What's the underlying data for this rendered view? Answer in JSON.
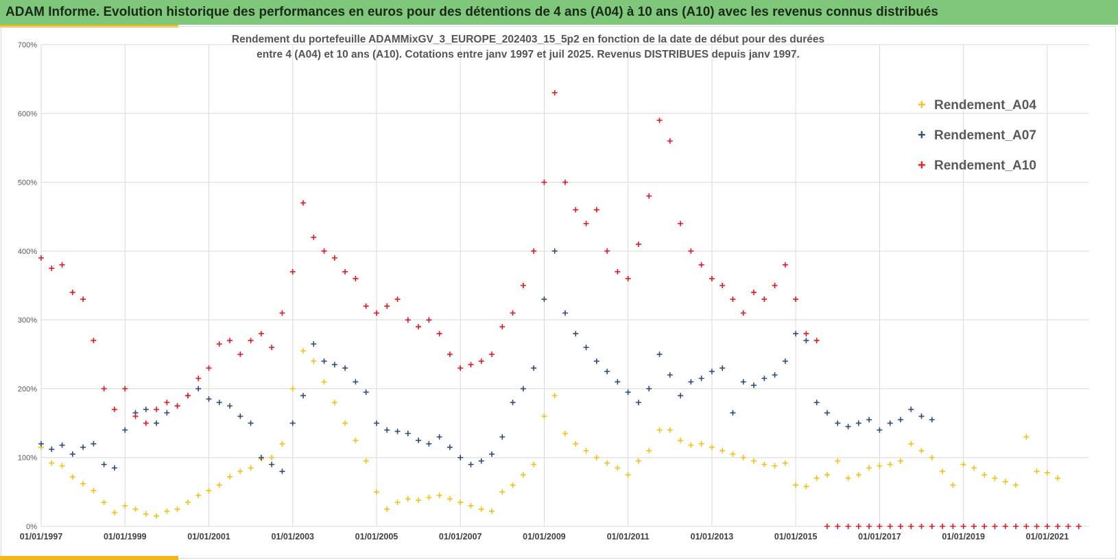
{
  "banner": {
    "title": "ADAM Informe. Evolution historique des performances en euros pour des détentions de 4 ans (A04) à 10 ans (A10) avec les revenus connus distribués"
  },
  "colors": {
    "banner_bg": "#7fc77a",
    "accent": "#f3b81c",
    "A04": "#f5c013",
    "A07": "#2e4a7a",
    "A10": "#e8141e",
    "grid": "#d9d9d9"
  },
  "chart_data": {
    "type": "scatter",
    "title_line1": "Rendement du portefeuille ADAMMixGV_3_EUROPE_202403_15_5p2  en fonction de la date de début pour des durées",
    "title_line2": "entre 4 (A04) et 10 ans (A10). Cotations  entre janv 1997 et juil 2025. Revenus DISTRIBUES depuis janv 1997.",
    "xlabel": "",
    "ylabel": "",
    "marker": "+",
    "x_ticks": [
      "01/01/1997",
      "01/01/1999",
      "01/01/2001",
      "01/01/2003",
      "01/01/2005",
      "01/01/2007",
      "01/01/2009",
      "01/01/2011",
      "01/01/2013",
      "01/01/2015",
      "01/01/2017",
      "01/01/2019",
      "01/01/2021"
    ],
    "y_ticks": [
      "0%",
      "100%",
      "200%",
      "300%",
      "400%",
      "500%",
      "600%",
      "700%"
    ],
    "xlim": [
      1997.0,
      2022.0
    ],
    "ylim": [
      0,
      700
    ],
    "grid": true,
    "legend_position": "top-right",
    "series": [
      {
        "name": "Rendement_A04",
        "x": [
          1997.0,
          1997.25,
          1997.5,
          1997.75,
          1998.0,
          1998.25,
          1998.5,
          1998.75,
          1999.0,
          1999.25,
          1999.5,
          1999.75,
          2000.0,
          2000.25,
          2000.5,
          2000.75,
          2001.0,
          2001.25,
          2001.5,
          2001.75,
          2002.0,
          2002.25,
          2002.5,
          2002.75,
          2003.0,
          2003.25,
          2003.5,
          2003.75,
          2004.0,
          2004.25,
          2004.5,
          2004.75,
          2005.0,
          2005.25,
          2005.5,
          2005.75,
          2006.0,
          2006.25,
          2006.5,
          2006.75,
          2007.0,
          2007.25,
          2007.5,
          2007.75,
          2008.0,
          2008.25,
          2008.5,
          2008.75,
          2009.0,
          2009.25,
          2009.5,
          2009.75,
          2010.0,
          2010.25,
          2010.5,
          2010.75,
          2011.0,
          2011.25,
          2011.5,
          2011.75,
          2012.0,
          2012.25,
          2012.5,
          2012.75,
          2013.0,
          2013.25,
          2013.5,
          2013.75,
          2014.0,
          2014.25,
          2014.5,
          2014.75,
          2015.0,
          2015.25,
          2015.5,
          2015.75,
          2016.0,
          2016.25,
          2016.5,
          2016.75,
          2017.0,
          2017.25,
          2017.5,
          2017.75,
          2018.0,
          2018.25,
          2018.5,
          2018.75,
          2019.0,
          2019.25,
          2019.5,
          2019.75,
          2020.0,
          2020.25,
          2020.5,
          2020.75,
          2021.0,
          2021.25
        ],
        "values": [
          115,
          92,
          88,
          72,
          62,
          52,
          35,
          20,
          30,
          25,
          18,
          15,
          22,
          25,
          35,
          45,
          52,
          60,
          72,
          80,
          85,
          98,
          100,
          120,
          200,
          255,
          240,
          210,
          180,
          150,
          125,
          95,
          50,
          25,
          35,
          40,
          38,
          42,
          45,
          40,
          35,
          30,
          25,
          22,
          50,
          60,
          75,
          90,
          160,
          190,
          135,
          120,
          110,
          100,
          92,
          85,
          75,
          95,
          110,
          140,
          140,
          125,
          118,
          120,
          115,
          110,
          105,
          100,
          95,
          90,
          88,
          92,
          60,
          58,
          70,
          75,
          95,
          70,
          75,
          85,
          88,
          90,
          95,
          120,
          110,
          100,
          80,
          60,
          90,
          85,
          75,
          70,
          65,
          60,
          130,
          80,
          78,
          70
        ]
      },
      {
        "name": "Rendement_A07",
        "x": [
          1997.0,
          1997.25,
          1997.5,
          1997.75,
          1998.0,
          1998.25,
          1998.5,
          1998.75,
          1999.0,
          1999.25,
          1999.5,
          1999.75,
          2000.0,
          2000.25,
          2000.5,
          2000.75,
          2001.0,
          2001.25,
          2001.5,
          2001.75,
          2002.0,
          2002.25,
          2002.5,
          2002.75,
          2003.0,
          2003.25,
          2003.5,
          2003.75,
          2004.0,
          2004.25,
          2004.5,
          2004.75,
          2005.0,
          2005.25,
          2005.5,
          2005.75,
          2006.0,
          2006.25,
          2006.5,
          2006.75,
          2007.0,
          2007.25,
          2007.5,
          2007.75,
          2008.0,
          2008.25,
          2008.5,
          2008.75,
          2009.0,
          2009.25,
          2009.5,
          2009.75,
          2010.0,
          2010.25,
          2010.5,
          2010.75,
          2011.0,
          2011.25,
          2011.5,
          2011.75,
          2012.0,
          2012.25,
          2012.5,
          2012.75,
          2013.0,
          2013.25,
          2013.5,
          2013.75,
          2014.0,
          2014.25,
          2014.5,
          2014.75,
          2015.0,
          2015.25,
          2015.5,
          2015.75,
          2016.0,
          2016.25,
          2016.5,
          2016.75,
          2017.0,
          2017.25,
          2017.5,
          2017.75,
          2018.0,
          2018.25
        ],
        "values": [
          120,
          112,
          118,
          105,
          115,
          120,
          90,
          85,
          140,
          165,
          170,
          150,
          165,
          175,
          190,
          200,
          185,
          180,
          175,
          160,
          150,
          100,
          90,
          80,
          150,
          190,
          265,
          240,
          235,
          230,
          210,
          195,
          150,
          140,
          138,
          135,
          125,
          120,
          130,
          115,
          100,
          90,
          95,
          105,
          130,
          180,
          200,
          230,
          330,
          400,
          310,
          280,
          260,
          240,
          225,
          210,
          195,
          180,
          200,
          250,
          220,
          190,
          210,
          215,
          225,
          230,
          165,
          210,
          205,
          215,
          220,
          240,
          280,
          270,
          180,
          165,
          150,
          145,
          150,
          155,
          140,
          150,
          155,
          170,
          160,
          155
        ]
      },
      {
        "name": "Rendement_A10",
        "x": [
          1997.0,
          1997.25,
          1997.5,
          1997.75,
          1998.0,
          1998.25,
          1998.5,
          1998.75,
          1999.0,
          1999.25,
          1999.5,
          1999.75,
          2000.0,
          2000.25,
          2000.5,
          2000.75,
          2001.0,
          2001.25,
          2001.5,
          2001.75,
          2002.0,
          2002.25,
          2002.5,
          2002.75,
          2003.0,
          2003.25,
          2003.5,
          2003.75,
          2004.0,
          2004.25,
          2004.5,
          2004.75,
          2005.0,
          2005.25,
          2005.5,
          2005.75,
          2006.0,
          2006.25,
          2006.5,
          2006.75,
          2007.0,
          2007.25,
          2007.5,
          2007.75,
          2008.0,
          2008.25,
          2008.5,
          2008.75,
          2009.0,
          2009.25,
          2009.5,
          2009.75,
          2010.0,
          2010.25,
          2010.5,
          2010.75,
          2011.0,
          2011.25,
          2011.5,
          2011.75,
          2012.0,
          2012.25,
          2012.5,
          2012.75,
          2013.0,
          2013.25,
          2013.5,
          2013.75,
          2014.0,
          2014.25,
          2014.5,
          2014.75,
          2015.0,
          2015.25,
          2015.5,
          2015.75,
          2016.0,
          2016.25,
          2016.5,
          2016.75,
          2017.0,
          2017.25,
          2017.5,
          2017.75,
          2018.0,
          2018.25,
          2018.5,
          2018.75,
          2019.0,
          2019.25,
          2019.5,
          2019.75,
          2020.0,
          2020.25,
          2020.5,
          2020.75,
          2021.0,
          2021.25,
          2021.5,
          2021.75
        ],
        "values": [
          390,
          375,
          380,
          340,
          330,
          270,
          200,
          170,
          200,
          160,
          150,
          170,
          180,
          175,
          190,
          215,
          230,
          265,
          270,
          250,
          270,
          280,
          260,
          310,
          370,
          470,
          420,
          400,
          390,
          370,
          360,
          320,
          310,
          320,
          330,
          300,
          290,
          300,
          280,
          250,
          230,
          235,
          240,
          250,
          290,
          310,
          350,
          400,
          500,
          630,
          500,
          460,
          440,
          460,
          400,
          370,
          360,
          410,
          480,
          590,
          560,
          440,
          400,
          380,
          360,
          350,
          330,
          310,
          340,
          330,
          350,
          380,
          330,
          280,
          270,
          0,
          0,
          0,
          0,
          0,
          0,
          0,
          0,
          0,
          0,
          0,
          0,
          0,
          0,
          0,
          0,
          0,
          0,
          0,
          0,
          0,
          0,
          0,
          0,
          0
        ]
      }
    ]
  }
}
